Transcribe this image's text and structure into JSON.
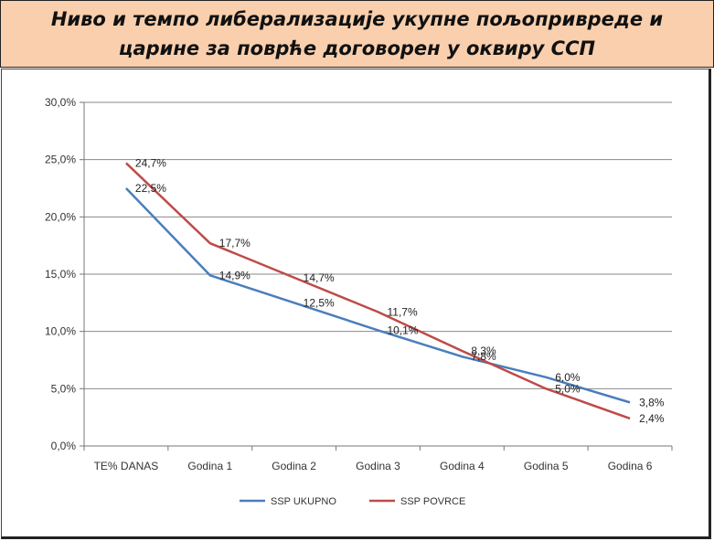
{
  "title": "Ниво и темпо либерализације укупне пољопривреде и\nцарине за поврће договорен у оквиру ССП",
  "chart_data": {
    "type": "line",
    "categories": [
      "TE% DANAS",
      "Godina 1",
      "Godina 2",
      "Godina 3",
      "Godina 4",
      "Godina 5",
      "Godina 6"
    ],
    "ylim": [
      0,
      30
    ],
    "yticks": [
      "0,0%",
      "5,0%",
      "10,0%",
      "15,0%",
      "20,0%",
      "25,0%",
      "30,0%"
    ],
    "grid": true,
    "legend_position": "bottom",
    "series": [
      {
        "name": "SSP UKUPNO",
        "color": "#4a7ebb",
        "values": [
          22.5,
          14.9,
          12.5,
          10.1,
          7.8,
          6.0,
          3.8
        ],
        "labels": [
          "22,5%",
          "14,9%",
          "12,5%",
          "10,1%",
          "7,8%",
          "6,0%",
          "3,8%"
        ]
      },
      {
        "name": "SSP POVRCE",
        "color": "#be4b48",
        "values": [
          24.7,
          17.7,
          14.7,
          11.7,
          8.3,
          5.0,
          2.4
        ],
        "labels": [
          "24,7%",
          "17,7%",
          "14,7%",
          "11,7%",
          "8,3%",
          "5,0%",
          "2,4%"
        ]
      }
    ]
  }
}
